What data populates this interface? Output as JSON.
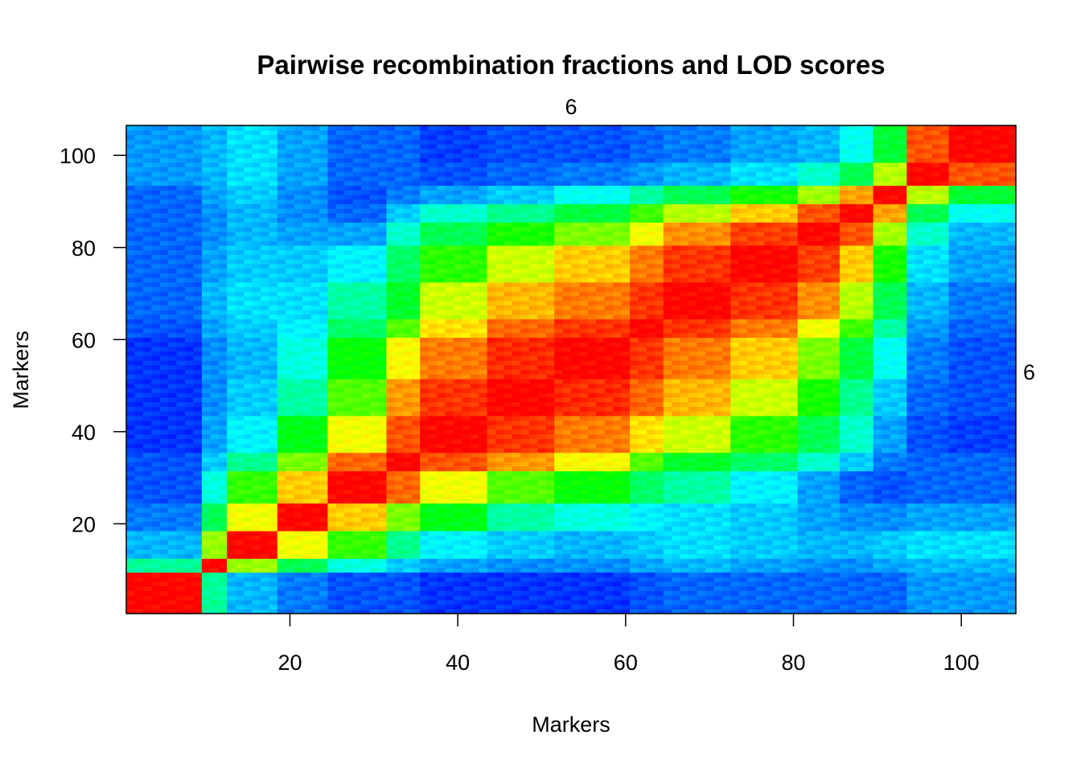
{
  "chart_data": {
    "type": "heatmap",
    "title": "Pairwise recombination fractions and LOD scores",
    "top_label": "6",
    "right_label": "6",
    "xlabel": "Markers",
    "ylabel": "Markers",
    "xlim": [
      0.5,
      106.5
    ],
    "ylim": [
      0.5,
      106.5
    ],
    "x_ticks": [
      20,
      40,
      60,
      80,
      100
    ],
    "y_ticks": [
      20,
      40,
      60,
      80,
      100
    ],
    "n_markers": 106,
    "color_scale": "rainbow, low = blue, high = red",
    "blocks": [
      9,
      12,
      18,
      24,
      31,
      35,
      43,
      51,
      60,
      64,
      72,
      80,
      85,
      89,
      93,
      98,
      106
    ],
    "block_links": [
      [
        1.0,
        0.35,
        0.18,
        0.12,
        0.08,
        0.08,
        0.05,
        0.05,
        0.05,
        0.08,
        0.1,
        0.1,
        0.1,
        0.1,
        0.1,
        0.15,
        0.15
      ],
      [
        0.35,
        1.0,
        0.65,
        0.42,
        0.28,
        0.2,
        0.16,
        0.14,
        0.14,
        0.16,
        0.18,
        0.16,
        0.14,
        0.14,
        0.16,
        0.18,
        0.18
      ],
      [
        0.18,
        0.65,
        1.0,
        0.74,
        0.55,
        0.36,
        0.24,
        0.2,
        0.18,
        0.2,
        0.22,
        0.2,
        0.18,
        0.18,
        0.2,
        0.22,
        0.22
      ],
      [
        0.12,
        0.42,
        0.74,
        1.0,
        0.8,
        0.62,
        0.48,
        0.34,
        0.28,
        0.24,
        0.22,
        0.2,
        0.16,
        0.14,
        0.14,
        0.16,
        0.16
      ],
      [
        0.08,
        0.28,
        0.55,
        0.8,
        1.0,
        0.9,
        0.74,
        0.58,
        0.5,
        0.4,
        0.34,
        0.24,
        0.16,
        0.1,
        0.08,
        0.1,
        0.1
      ],
      [
        0.08,
        0.2,
        0.36,
        0.62,
        0.9,
        1.0,
        0.92,
        0.85,
        0.75,
        0.58,
        0.46,
        0.4,
        0.3,
        0.2,
        0.12,
        0.1,
        0.1
      ],
      [
        0.05,
        0.16,
        0.24,
        0.48,
        0.74,
        0.92,
        1.0,
        0.95,
        0.88,
        0.78,
        0.7,
        0.54,
        0.42,
        0.3,
        0.16,
        0.08,
        0.06
      ],
      [
        0.05,
        0.14,
        0.2,
        0.34,
        0.58,
        0.85,
        0.95,
        1.0,
        0.96,
        0.9,
        0.82,
        0.7,
        0.52,
        0.36,
        0.2,
        0.1,
        0.08
      ],
      [
        0.05,
        0.14,
        0.18,
        0.28,
        0.5,
        0.75,
        0.88,
        0.96,
        1.0,
        0.95,
        0.88,
        0.8,
        0.62,
        0.44,
        0.26,
        0.12,
        0.08
      ],
      [
        0.08,
        0.16,
        0.2,
        0.24,
        0.4,
        0.58,
        0.78,
        0.9,
        0.95,
        1.0,
        0.95,
        0.88,
        0.74,
        0.56,
        0.34,
        0.15,
        0.1
      ],
      [
        0.1,
        0.18,
        0.22,
        0.22,
        0.34,
        0.46,
        0.7,
        0.82,
        0.88,
        0.95,
        1.0,
        0.95,
        0.86,
        0.68,
        0.42,
        0.18,
        0.12
      ],
      [
        0.1,
        0.16,
        0.2,
        0.2,
        0.24,
        0.4,
        0.54,
        0.7,
        0.8,
        0.88,
        0.95,
        1.0,
        0.94,
        0.8,
        0.52,
        0.22,
        0.16
      ],
      [
        0.1,
        0.14,
        0.18,
        0.16,
        0.16,
        0.3,
        0.42,
        0.52,
        0.62,
        0.74,
        0.86,
        0.94,
        1.0,
        0.92,
        0.66,
        0.3,
        0.18
      ],
      [
        0.1,
        0.14,
        0.18,
        0.14,
        0.1,
        0.2,
        0.3,
        0.36,
        0.44,
        0.56,
        0.68,
        0.8,
        0.92,
        1.0,
        0.84,
        0.42,
        0.26
      ],
      [
        0.1,
        0.16,
        0.2,
        0.14,
        0.08,
        0.12,
        0.16,
        0.2,
        0.26,
        0.34,
        0.42,
        0.52,
        0.66,
        0.84,
        1.0,
        0.68,
        0.45
      ],
      [
        0.15,
        0.18,
        0.22,
        0.16,
        0.1,
        0.1,
        0.08,
        0.1,
        0.12,
        0.15,
        0.18,
        0.22,
        0.3,
        0.42,
        0.68,
        1.0,
        0.92
      ],
      [
        0.15,
        0.18,
        0.22,
        0.16,
        0.1,
        0.1,
        0.06,
        0.08,
        0.08,
        0.1,
        0.12,
        0.16,
        0.18,
        0.26,
        0.45,
        0.92,
        1.0
      ]
    ]
  }
}
